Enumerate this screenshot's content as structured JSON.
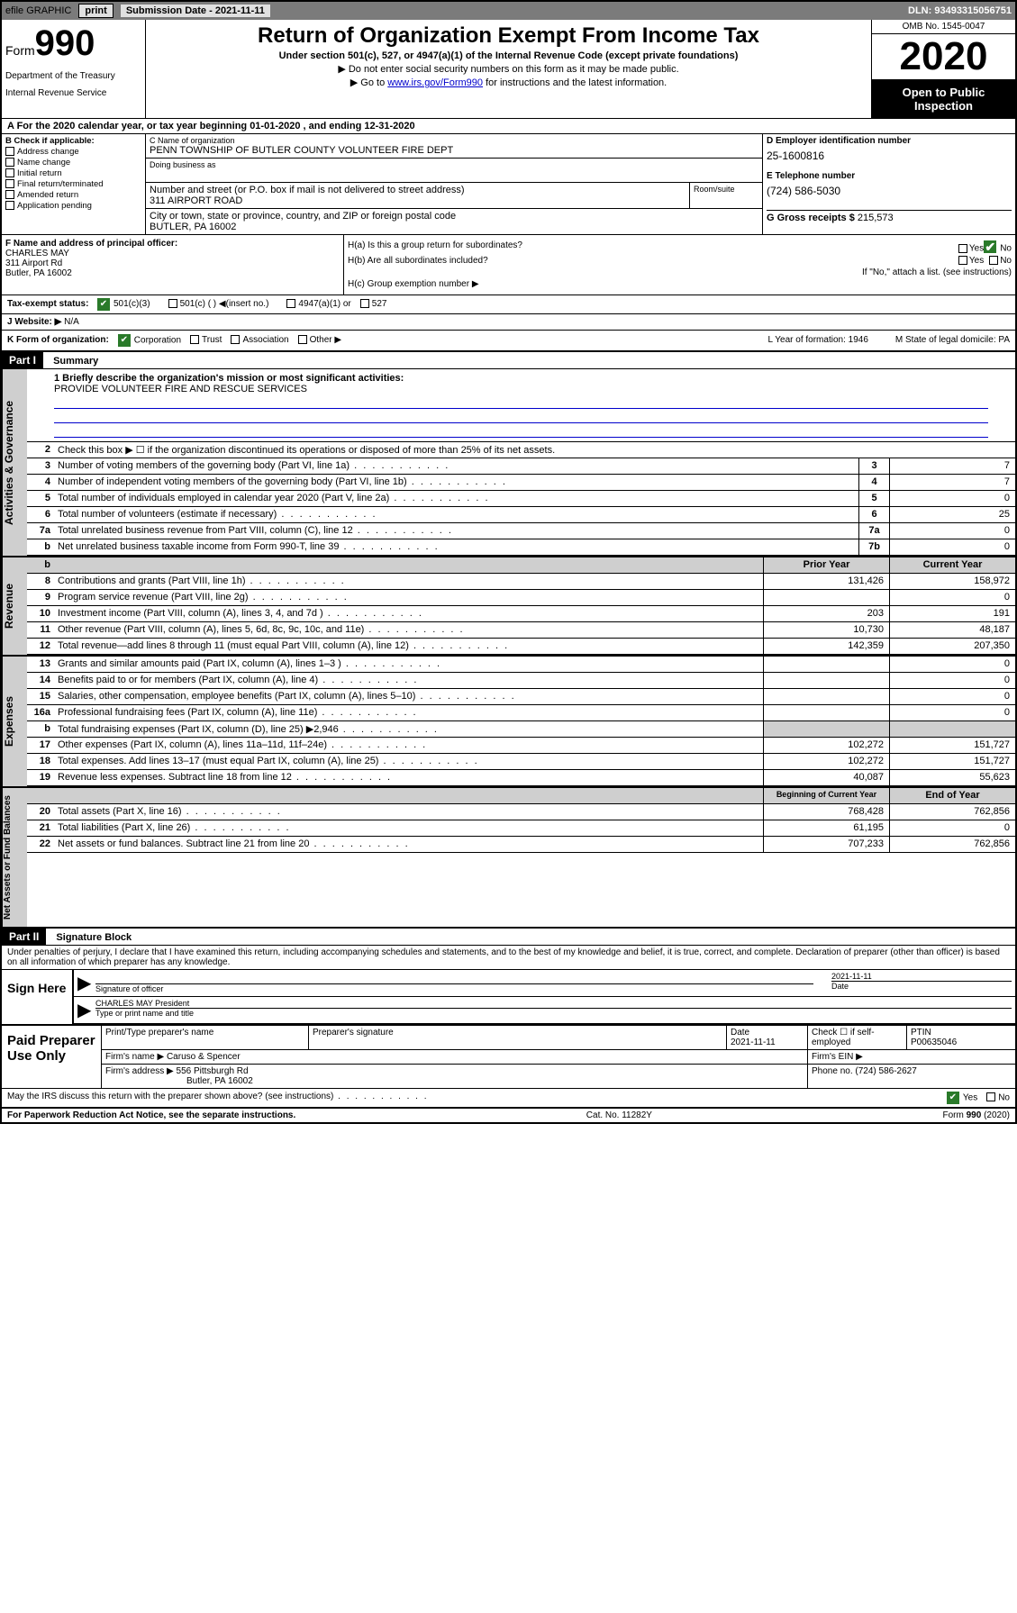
{
  "topbar": {
    "efile": "efile GRAPHIC",
    "print": "print",
    "submission": "Submission Date - 2021-11-11",
    "dln": "DLN: 93493315056751"
  },
  "header": {
    "form_label": "Form",
    "form_number": "990",
    "dept1": "Department of the Treasury",
    "dept2": "Internal Revenue Service",
    "title": "Return of Organization Exempt From Income Tax",
    "subtitle": "Under section 501(c), 527, or 4947(a)(1) of the Internal Revenue Code (except private foundations)",
    "arrow1": "▶ Do not enter social security numbers on this form as it may be made public.",
    "arrow2_pre": "▶ Go to ",
    "arrow2_link": "www.irs.gov/Form990",
    "arrow2_post": " for instructions and the latest information.",
    "omb": "OMB No. 1545-0047",
    "year": "2020",
    "open": "Open to Public Inspection"
  },
  "period": "A For the 2020 calendar year, or tax year beginning 01-01-2020    , and ending 12-31-2020",
  "section_b": {
    "label": "B Check if applicable:",
    "opts": [
      "Address change",
      "Name change",
      "Initial return",
      "Final return/terminated",
      "Amended return",
      "Application pending"
    ]
  },
  "section_c": {
    "name_label": "C Name of organization",
    "name": "PENN TOWNSHIP OF BUTLER COUNTY VOLUNTEER FIRE DEPT",
    "dba_label": "Doing business as",
    "addr_label": "Number and street (or P.O. box if mail is not delivered to street address)",
    "addr": "311 AIRPORT ROAD",
    "room_label": "Room/suite",
    "city_label": "City or town, state or province, country, and ZIP or foreign postal code",
    "city": "BUTLER, PA  16002"
  },
  "section_d": {
    "label": "D Employer identification number",
    "ein": "25-1600816",
    "tel_label": "E Telephone number",
    "tel": "(724) 586-5030",
    "gross_label": "G Gross receipts $",
    "gross": "215,573"
  },
  "section_f": {
    "label": "F Name and address of principal officer:",
    "name": "CHARLES MAY",
    "addr1": "311 Airport Rd",
    "addr2": "Butler, PA  16002"
  },
  "section_h": {
    "a": "H(a)  Is this a group return for subordinates?",
    "b": "H(b)  Are all subordinates included?",
    "b_note": "If \"No,\" attach a list. (see instructions)",
    "c": "H(c)  Group exemption number ▶",
    "yes": "Yes",
    "no": "No"
  },
  "status": {
    "label": "Tax-exempt status:",
    "opt1": "501(c)(3)",
    "opt2": "501(c) (  ) ◀(insert no.)",
    "opt3": "4947(a)(1) or",
    "opt4": "527"
  },
  "website": {
    "label": "J  Website: ▶",
    "val": "N/A"
  },
  "k_row": {
    "label": "K Form of organization:",
    "corp": "Corporation",
    "trust": "Trust",
    "assoc": "Association",
    "other": "Other ▶",
    "l": "L Year of formation: 1946",
    "m": "M State of legal domicile: PA"
  },
  "parts": {
    "p1": "Part I",
    "p1_title": "Summary",
    "p2": "Part II",
    "p2_title": "Signature Block"
  },
  "mission": {
    "label": "1  Briefly describe the organization's mission or most significant activities:",
    "text": "PROVIDE VOLUNTEER FIRE AND RESCUE SERVICES"
  },
  "gov_section": {
    "label": "Activities & Governance",
    "l2": "Check this box ▶ ☐  if the organization discontinued its operations or disposed of more than 25% of its net assets.",
    "rows": [
      {
        "n": "3",
        "t": "Number of voting members of the governing body (Part VI, line 1a)",
        "box": "3",
        "v": "7"
      },
      {
        "n": "4",
        "t": "Number of independent voting members of the governing body (Part VI, line 1b)",
        "box": "4",
        "v": "7"
      },
      {
        "n": "5",
        "t": "Total number of individuals employed in calendar year 2020 (Part V, line 2a)",
        "box": "5",
        "v": "0"
      },
      {
        "n": "6",
        "t": "Total number of volunteers (estimate if necessary)",
        "box": "6",
        "v": "25"
      },
      {
        "n": "7a",
        "t": "Total unrelated business revenue from Part VIII, column (C), line 12",
        "box": "7a",
        "v": "0"
      },
      {
        "n": "b",
        "t": "Net unrelated business taxable income from Form 990-T, line 39",
        "box": "7b",
        "v": "0"
      }
    ]
  },
  "rev_section": {
    "label": "Revenue",
    "hdr_prior": "Prior Year",
    "hdr_curr": "Current Year",
    "rows": [
      {
        "n": "8",
        "t": "Contributions and grants (Part VIII, line 1h)",
        "p": "131,426",
        "c": "158,972"
      },
      {
        "n": "9",
        "t": "Program service revenue (Part VIII, line 2g)",
        "p": "",
        "c": "0"
      },
      {
        "n": "10",
        "t": "Investment income (Part VIII, column (A), lines 3, 4, and 7d )",
        "p": "203",
        "c": "191"
      },
      {
        "n": "11",
        "t": "Other revenue (Part VIII, column (A), lines 5, 6d, 8c, 9c, 10c, and 11e)",
        "p": "10,730",
        "c": "48,187"
      },
      {
        "n": "12",
        "t": "Total revenue—add lines 8 through 11 (must equal Part VIII, column (A), line 12)",
        "p": "142,359",
        "c": "207,350"
      }
    ]
  },
  "exp_section": {
    "label": "Expenses",
    "rows": [
      {
        "n": "13",
        "t": "Grants and similar amounts paid (Part IX, column (A), lines 1–3 )",
        "p": "",
        "c": "0"
      },
      {
        "n": "14",
        "t": "Benefits paid to or for members (Part IX, column (A), line 4)",
        "p": "",
        "c": "0"
      },
      {
        "n": "15",
        "t": "Salaries, other compensation, employee benefits (Part IX, column (A), lines 5–10)",
        "p": "",
        "c": "0"
      },
      {
        "n": "16a",
        "t": "Professional fundraising fees (Part IX, column (A), line 11e)",
        "p": "",
        "c": "0"
      },
      {
        "n": "b",
        "t": "Total fundraising expenses (Part IX, column (D), line 25) ▶2,946",
        "p": "GREY",
        "c": "GREY"
      },
      {
        "n": "17",
        "t": "Other expenses (Part IX, column (A), lines 11a–11d, 11f–24e)",
        "p": "102,272",
        "c": "151,727"
      },
      {
        "n": "18",
        "t": "Total expenses. Add lines 13–17 (must equal Part IX, column (A), line 25)",
        "p": "102,272",
        "c": "151,727"
      },
      {
        "n": "19",
        "t": "Revenue less expenses. Subtract line 18 from line 12",
        "p": "40,087",
        "c": "55,623"
      }
    ]
  },
  "net_section": {
    "label": "Net Assets or Fund Balances",
    "hdr_begin": "Beginning of Current Year",
    "hdr_end": "End of Year",
    "rows": [
      {
        "n": "20",
        "t": "Total assets (Part X, line 16)",
        "p": "768,428",
        "c": "762,856"
      },
      {
        "n": "21",
        "t": "Total liabilities (Part X, line 26)",
        "p": "61,195",
        "c": "0"
      },
      {
        "n": "22",
        "t": "Net assets or fund balances. Subtract line 21 from line 20",
        "p": "707,233",
        "c": "762,856"
      }
    ]
  },
  "declare": "Under penalties of perjury, I declare that I have examined this return, including accompanying schedules and statements, and to the best of my knowledge and belief, it is true, correct, and complete. Declaration of preparer (other than officer) is based on all information of which preparer has any knowledge.",
  "sign": {
    "label": "Sign Here",
    "sig_officer": "Signature of officer",
    "date": "2021-11-11",
    "date_label": "Date",
    "name": "CHARLES MAY President",
    "name_label": "Type or print name and title"
  },
  "preparer": {
    "label": "Paid Preparer Use Only",
    "h_name": "Print/Type preparer's name",
    "h_sig": "Preparer's signature",
    "h_date": "Date",
    "date": "2021-11-11",
    "check_label": "Check ☐ if self-employed",
    "ptin_label": "PTIN",
    "ptin": "P00635046",
    "firm_name_label": "Firm's name    ▶",
    "firm_name": "Caruso & Spencer",
    "firm_ein_label": "Firm's EIN ▶",
    "firm_addr_label": "Firm's address ▶",
    "firm_addr1": "556 Pittsburgh Rd",
    "firm_addr2": "Butler, PA  16002",
    "phone_label": "Phone no.",
    "phone": "(724) 586-2627"
  },
  "bottom": {
    "q": "May the IRS discuss this return with the preparer shown above? (see instructions)",
    "yes": "Yes",
    "no": "No"
  },
  "footer": {
    "left": "For Paperwork Reduction Act Notice, see the separate instructions.",
    "mid": "Cat. No. 11282Y",
    "right": "Form 990 (2020)"
  }
}
